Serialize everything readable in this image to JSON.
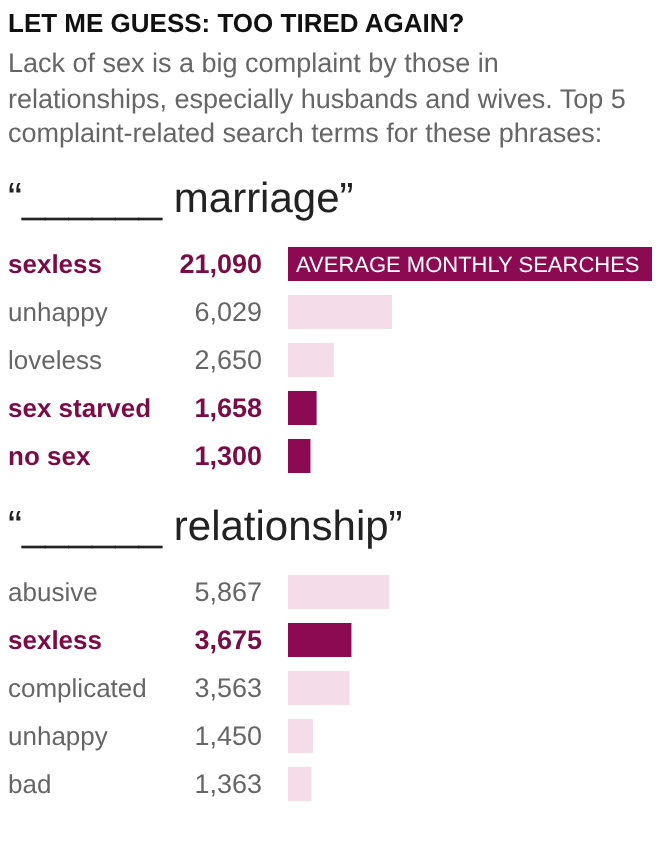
{
  "chart_data": [
    {
      "type": "bar",
      "orientation": "horizontal",
      "title": "LET ME GUESS: TOO TIRED AGAIN?",
      "subtitle": "Lack of sex is a big complaint by those in relationships, especially husbands and wives. Top 5 complaint-related search terms for these phrases:",
      "annotations": [
        "“______ marriage”"
      ],
      "xlabel": "AVERAGE MONTHLY SEARCHES",
      "categories": [
        "sexless",
        "unhappy",
        "loveless",
        "sex starved",
        "no sex"
      ],
      "values": [
        21090,
        6029,
        2650,
        1658,
        1300
      ],
      "value_labels": [
        "21,090",
        "6,029",
        "2,650",
        "1,658",
        "1,300"
      ],
      "colors": [
        "#8c0a52",
        "#f4dce9",
        "#f4dce9",
        "#8c0a52",
        "#8c0a52"
      ]
    },
    {
      "type": "bar",
      "orientation": "horizontal",
      "title": "“______ relationship”",
      "categories": [
        "abusive",
        "sexless",
        "complicated",
        "unhappy",
        "bad"
      ],
      "values": [
        5867,
        3675,
        3563,
        1450,
        1363
      ],
      "value_labels": [
        "5,867",
        "3,675",
        "3,563",
        "1,450",
        "1,363"
      ],
      "colors": [
        "#f4dce9",
        "#8c0a52",
        "#f4dce9",
        "#f4dce9",
        "#f4dce9"
      ]
    }
  ]
}
